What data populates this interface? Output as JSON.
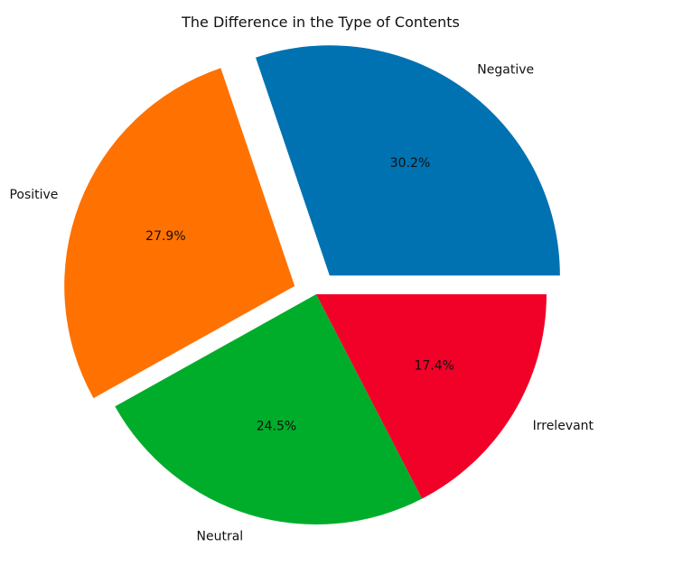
{
  "chart_data": {
    "type": "pie",
    "title": "The Difference in the Type of Contents",
    "slices": [
      {
        "label": "Negative",
        "value": 30.2,
        "pct_label": "30.2%",
        "color": "#0072b2",
        "explode": true
      },
      {
        "label": "Positive",
        "value": 27.9,
        "pct_label": "27.9%",
        "color": "#ff7100",
        "explode": true
      },
      {
        "label": "Neutral",
        "value": 24.5,
        "pct_label": "24.5%",
        "color": "#00ad2a",
        "explode": false
      },
      {
        "label": "Irrelevant",
        "value": 17.4,
        "pct_label": "17.4%",
        "color": "#f10028",
        "explode": false
      }
    ],
    "start_angle_deg": 0,
    "direction": "counterclockwise",
    "legend": "none"
  }
}
